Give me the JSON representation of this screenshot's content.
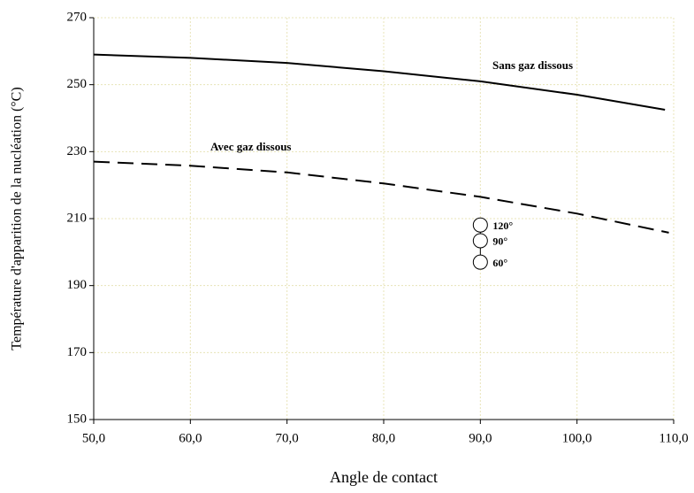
{
  "chart_data": {
    "type": "line",
    "x_label": "Angle de contact",
    "y_label": "Température d'apparition de la nucléation (°C)",
    "xlim": [
      50,
      110
    ],
    "ylim": [
      150,
      270
    ],
    "xticks": [
      {
        "value": 50,
        "label": "50,0"
      },
      {
        "value": 60,
        "label": "60,0"
      },
      {
        "value": 70,
        "label": "70,0"
      },
      {
        "value": 80,
        "label": "80,0"
      },
      {
        "value": 90,
        "label": "90,0"
      },
      {
        "value": 100,
        "label": "100,0"
      },
      {
        "value": 110,
        "label": "110,0"
      }
    ],
    "yticks": [
      150,
      170,
      190,
      210,
      230,
      250,
      270
    ],
    "grid": true,
    "series": [
      {
        "name": "Sans gaz dissous",
        "color": "#000000",
        "line_style": "solid",
        "x": [
          50,
          60,
          70,
          80,
          90,
          100,
          109.1
        ],
        "values": [
          259,
          258,
          256.5,
          254,
          251,
          247,
          242.5
        ]
      },
      {
        "name": "Avec gaz dissous",
        "color": "#000000",
        "line_style": "dashed",
        "x": [
          50,
          60,
          70,
          80,
          90,
          100,
          109.5
        ],
        "values": [
          227,
          225.8,
          223.8,
          220.5,
          216.5,
          211.5,
          205.8
        ]
      }
    ],
    "markers": {
      "x": [
        90,
        90,
        90
      ],
      "values": [
        208.1,
        203.4,
        197
      ],
      "labels": [
        "120°",
        "90°",
        "60°"
      ]
    }
  }
}
